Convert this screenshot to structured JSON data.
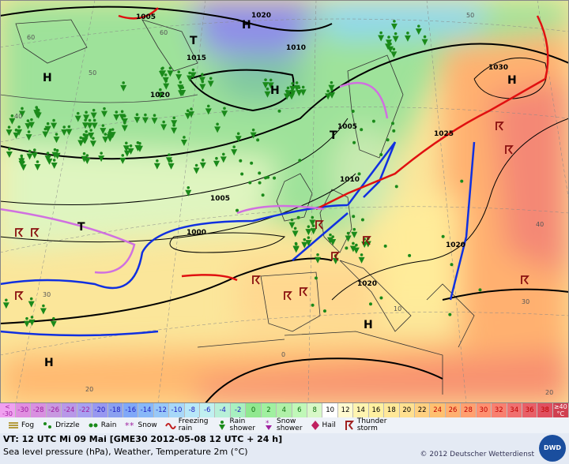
{
  "map": {
    "pressure_labels": [
      "1005",
      "1020",
      "1015",
      "1010",
      "1020",
      "1005",
      "1010",
      "1005",
      "1000",
      "1025",
      "1030",
      "1020",
      "1020"
    ],
    "centers": [
      "H",
      "H",
      "T",
      "H",
      "T",
      "T",
      "H",
      "H",
      "H"
    ],
    "grid_labels": [
      "60",
      "60",
      "50",
      "40",
      "30",
      "20",
      "10",
      "0",
      "40",
      "30",
      "20",
      "50"
    ]
  },
  "legend": {
    "low": "<",
    "low_value": "-30",
    "temperatures": [
      -30,
      -28,
      -26,
      -24,
      -22,
      -20,
      -18,
      -16,
      -14,
      -12,
      -10,
      -8,
      -6,
      -4,
      -2,
      0,
      2,
      4,
      6,
      8,
      10,
      12,
      14,
      16,
      18,
      20,
      22,
      24,
      26,
      28,
      30,
      32,
      34,
      36,
      38
    ],
    "colors": [
      "#e08ee0",
      "#d890e0",
      "#c898e0",
      "#b898e8",
      "#a8a0f0",
      "#9898f0",
      "#8aa0f0",
      "#80a8f8",
      "#88b8f8",
      "#98c8f8",
      "#a8d8f8",
      "#b8e8f8",
      "#c0f0f0",
      "#b8f0d8",
      "#a8f0c0",
      "#90e890",
      "#a0f0a0",
      "#b0f0a8",
      "#c0f8b8",
      "#d8f8c8",
      "#ffffff",
      "#fffad0",
      "#fff4b0",
      "#fff0a0",
      "#ffe898",
      "#ffe090",
      "#ffd080",
      "#ffc070",
      "#ffb070",
      "#ffa070",
      "#ff9070",
      "#f88070",
      "#f07070",
      "#e86068",
      "#e05060"
    ],
    "high": "≥40",
    "high_unit": "°C",
    "weather": [
      "Fog",
      "Drizzle",
      "Rain",
      "Snow",
      "Freezing\nrain",
      "Rain\nshower",
      "Snow\nshower",
      "Hail",
      "Thunder\nstorm"
    ]
  },
  "footer": {
    "valid_time": "VT: 12 UTC Mi  09 Mai [GME30 2012-05-08  12 UTC + 24 h]",
    "description": "Sea level pressure (hPa), Weather, Temperature 2m (°C)",
    "copyright": "© 2012 Deutscher Wetterdienst",
    "logo": "DWD"
  }
}
